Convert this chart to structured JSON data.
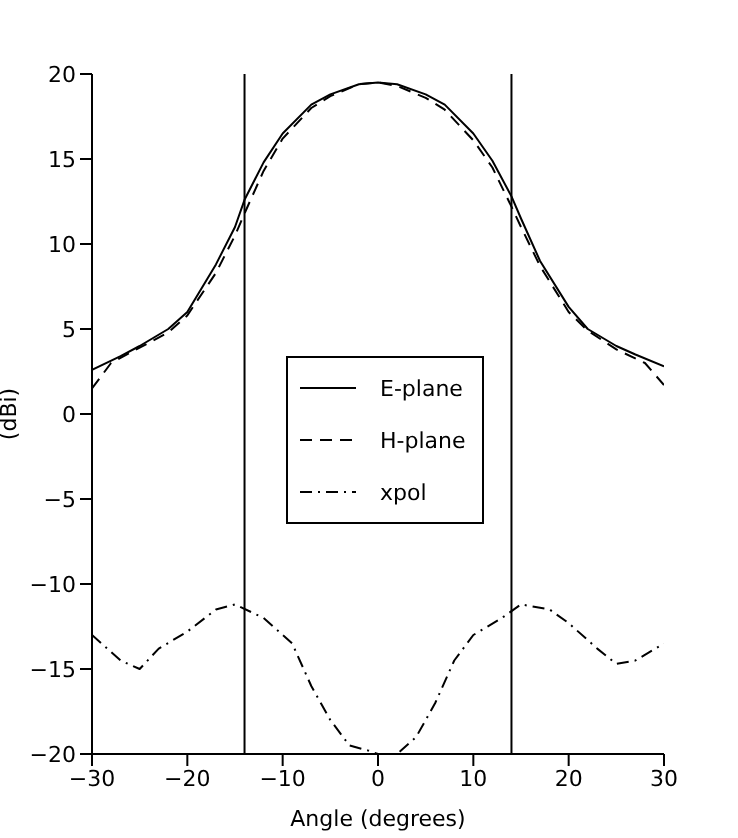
{
  "chart_data": {
    "type": "line",
    "xlabel": "Angle (degrees)",
    "ylabel": "(dBi)",
    "xlim": [
      -30,
      30
    ],
    "xticks": [
      -30,
      -20,
      -10,
      0,
      10,
      20,
      30
    ],
    "ylim": [
      -20,
      20
    ],
    "yticks": [
      -20,
      -15,
      -10,
      -5,
      0,
      5,
      10,
      15,
      20
    ],
    "grid": false,
    "legend": "center",
    "marker": "none",
    "ref_lines": [
      {
        "axis": "x",
        "value": -14,
        "color": "#000000"
      },
      {
        "axis": "x",
        "value": 14,
        "color": "#000000"
      }
    ],
    "series": [
      {
        "name": "E-plane",
        "color": "#000000",
        "line_style": "solid",
        "x": [
          -30,
          -27,
          -25,
          -22,
          -20,
          -17,
          -15,
          -14,
          -12,
          -10,
          -7,
          -5,
          -2,
          0,
          2,
          5,
          7,
          10,
          12,
          14,
          15,
          17,
          20,
          22,
          25,
          27,
          30
        ],
        "values": [
          2.6,
          3.4,
          4.0,
          5.0,
          6.0,
          8.8,
          11.0,
          12.6,
          14.8,
          16.5,
          18.2,
          18.8,
          19.4,
          19.5,
          19.4,
          18.8,
          18.2,
          16.5,
          14.9,
          12.8,
          11.5,
          9.0,
          6.3,
          5.0,
          4.0,
          3.5,
          2.8
        ]
      },
      {
        "name": "H-plane",
        "color": "#000000",
        "line_style": "dashed",
        "x": [
          -30,
          -28,
          -25,
          -22,
          -20,
          -17,
          -15,
          -14,
          -12,
          -10,
          -7,
          -5,
          -2,
          0,
          2,
          5,
          7,
          10,
          12,
          14,
          15,
          17,
          20,
          22,
          25,
          28,
          30
        ],
        "values": [
          1.5,
          3.0,
          3.9,
          4.8,
          5.8,
          8.3,
          10.5,
          11.8,
          14.3,
          16.2,
          18.0,
          18.7,
          19.4,
          19.5,
          19.3,
          18.6,
          17.9,
          16.1,
          14.5,
          12.2,
          11.0,
          8.7,
          6.0,
          4.9,
          3.8,
          3.0,
          1.7
        ]
      },
      {
        "name": "xpol",
        "color": "#000000",
        "line_style": "dashdot",
        "x": [
          -30,
          -27,
          -25,
          -23,
          -20,
          -17,
          -15,
          -12,
          -9,
          -7,
          -5,
          -3,
          -1,
          0,
          2,
          4,
          6,
          8,
          10,
          13,
          15,
          18,
          20,
          23,
          25,
          27,
          30
        ],
        "values": [
          -13,
          -14.5,
          -15,
          -13.8,
          -12.8,
          -11.5,
          -11.2,
          -12,
          -13.5,
          -16,
          -18,
          -19.5,
          -19.8,
          -20,
          -20,
          -19,
          -17,
          -14.5,
          -13,
          -12,
          -11.2,
          -11.5,
          -12.3,
          -13.8,
          -14.7,
          -14.5,
          -13.5
        ]
      }
    ]
  }
}
